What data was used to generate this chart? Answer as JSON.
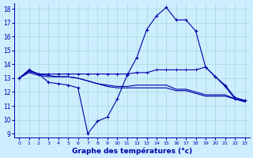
{
  "title": "Graphe des températures (°c)",
  "bg_color": "#cceeff",
  "grid_color": "#aadddd",
  "line_color": "#0000aa",
  "xlim": [
    -0.5,
    23.5
  ],
  "ylim": [
    8.7,
    18.4
  ],
  "yticks": [
    9,
    10,
    11,
    12,
    13,
    14,
    15,
    16,
    17,
    18
  ],
  "xticks": [
    0,
    1,
    2,
    3,
    4,
    5,
    6,
    7,
    8,
    9,
    10,
    11,
    12,
    13,
    14,
    15,
    16,
    17,
    18,
    19,
    20,
    21,
    22,
    23
  ],
  "line1_x": [
    0,
    1,
    2,
    3,
    4,
    5,
    6,
    7,
    8,
    9,
    10,
    11,
    12,
    13,
    14,
    15,
    16,
    17,
    18,
    19,
    20,
    21,
    22,
    23
  ],
  "line1_y": [
    13.0,
    13.6,
    13.3,
    12.7,
    12.6,
    12.5,
    12.3,
    9.0,
    9.9,
    10.2,
    11.5,
    13.2,
    14.5,
    16.5,
    17.5,
    18.1,
    17.2,
    17.2,
    16.4,
    13.8,
    13.1,
    12.4,
    11.5,
    11.4
  ],
  "line2_x": [
    0,
    1,
    2,
    3,
    4,
    5,
    6,
    7,
    8,
    9,
    10,
    11,
    12,
    13,
    14,
    15,
    16,
    17,
    18,
    19,
    20,
    21,
    22,
    23
  ],
  "line2_y": [
    13.0,
    13.5,
    13.3,
    13.3,
    13.3,
    13.3,
    13.3,
    13.3,
    13.3,
    13.3,
    13.3,
    13.3,
    13.4,
    13.4,
    13.6,
    13.6,
    13.6,
    13.6,
    13.6,
    13.8,
    13.1,
    12.5,
    11.6,
    11.4
  ],
  "line3_x": [
    0,
    1,
    2,
    3,
    4,
    5,
    6,
    7,
    8,
    9,
    10,
    11,
    12,
    13,
    14,
    15,
    16,
    17,
    18,
    19,
    20,
    21,
    22,
    23
  ],
  "line3_y": [
    13.0,
    13.5,
    13.3,
    13.2,
    13.1,
    13.1,
    13.0,
    12.8,
    12.6,
    12.5,
    12.4,
    12.4,
    12.5,
    12.5,
    12.5,
    12.5,
    12.2,
    12.2,
    12.0,
    11.8,
    11.8,
    11.8,
    11.5,
    11.3
  ],
  "line4_x": [
    0,
    1,
    2,
    3,
    4,
    5,
    6,
    7,
    8,
    9,
    10,
    11,
    12,
    13,
    14,
    15,
    16,
    17,
    18,
    19,
    20,
    21,
    22,
    23
  ],
  "line4_y": [
    13.0,
    13.4,
    13.2,
    13.1,
    13.1,
    13.1,
    13.0,
    12.8,
    12.6,
    12.4,
    12.3,
    12.3,
    12.3,
    12.3,
    12.3,
    12.3,
    12.1,
    12.1,
    11.9,
    11.7,
    11.7,
    11.7,
    11.5,
    11.3
  ]
}
